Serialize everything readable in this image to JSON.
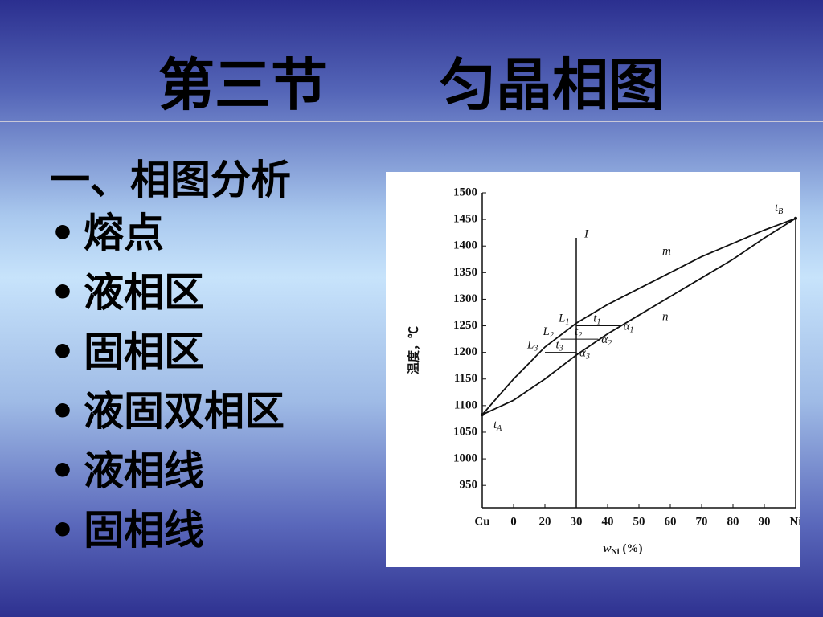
{
  "title": "第三节　　匀晶相图",
  "heading": "一、相图分析",
  "bullets": [
    "熔点",
    "液相区",
    "固相区",
    "液固双相区",
    "液相线",
    "固相线"
  ],
  "chart_data": {
    "type": "line",
    "y_label": "温度，℃",
    "x_label": {
      "text": "w",
      "sub": "Ni",
      "unit": "(%)"
    },
    "x": [
      0,
      10,
      20,
      30,
      40,
      50,
      60,
      70,
      80,
      90,
      100
    ],
    "series": [
      {
        "name": "m",
        "color": "#111111",
        "values": [
          1083,
          1150,
          1210,
          1255,
          1290,
          1320,
          1350,
          1380,
          1405,
          1430,
          1452
        ]
      },
      {
        "name": "n",
        "color": "#111111",
        "values": [
          1083,
          1110,
          1150,
          1195,
          1235,
          1270,
          1305,
          1340,
          1375,
          1415,
          1452
        ]
      }
    ],
    "xlim": [
      0,
      100
    ],
    "xticks": [
      {
        "value": 0,
        "label": "Cu"
      },
      {
        "value": 10,
        "label": "0"
      },
      20,
      30,
      40,
      50,
      60,
      70,
      80,
      90,
      {
        "value": 100,
        "label": "Ni"
      }
    ],
    "ylim": [
      908,
      1500
    ],
    "yticks": [
      950,
      1000,
      1050,
      1100,
      1150,
      1200,
      1250,
      1300,
      1350,
      1400,
      1450,
      1500
    ],
    "vertical_line": {
      "label": "I",
      "x": 30
    },
    "points": [
      {
        "label": "t",
        "sub": "A",
        "x": 0,
        "y": 1083
      },
      {
        "label": "t",
        "sub": "B",
        "x": 100,
        "y": 1452
      }
    ],
    "tie_lines": [
      {
        "t": "t",
        "t_sub": "1",
        "l": "L",
        "l_sub": "1",
        "a": "α",
        "a_sub": "1",
        "y": 1250,
        "x": [
          30,
          44
        ]
      },
      {
        "t": "t",
        "t_sub": "2",
        "l": "L",
        "l_sub": "2",
        "a": "α",
        "a_sub": "2",
        "y": 1225,
        "x": [
          25,
          37
        ]
      },
      {
        "t": "t",
        "t_sub": "3",
        "l": "L",
        "l_sub": "3",
        "a": "α",
        "a_sub": "3",
        "y": 1200,
        "x": [
          20,
          30
        ]
      }
    ]
  }
}
